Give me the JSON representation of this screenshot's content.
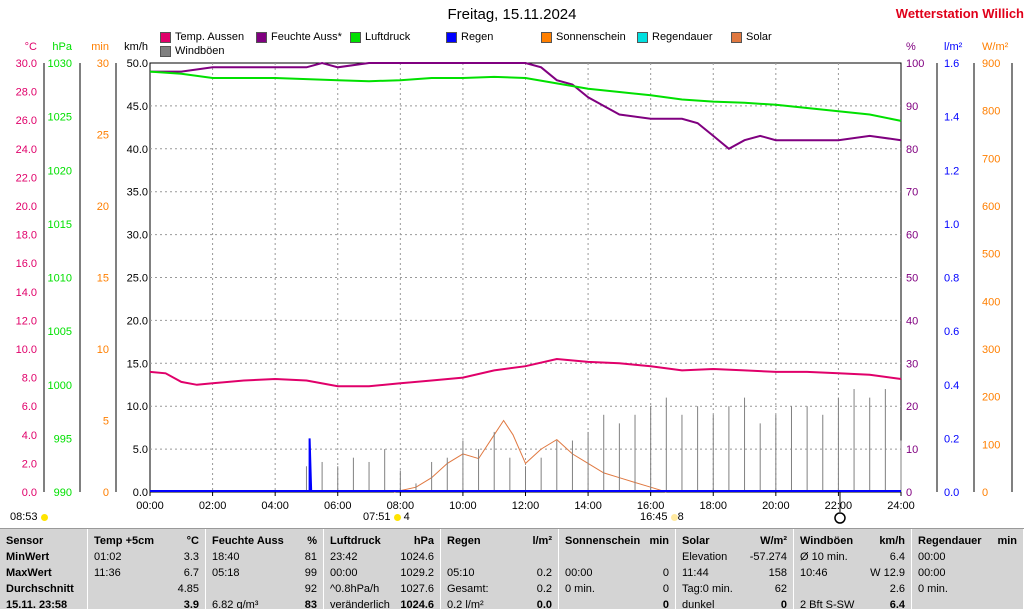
{
  "header": {
    "title": "Freitag, 15.11.2024",
    "brand": "Wetterstation Willich"
  },
  "legend": [
    {
      "label": "Temp. Aussen",
      "color": "#e0006a"
    },
    {
      "label": "Feuchte Auss*",
      "color": "#800080"
    },
    {
      "label": "Luftdruck",
      "color": "#00e000"
    },
    {
      "label": "Regen",
      "color": "#0000ff"
    },
    {
      "label": "Sonnenschein",
      "color": "#ff7f00"
    },
    {
      "label": "Regendauer",
      "color": "#00e0e0"
    },
    {
      "label": "Solar",
      "color": "#e07840"
    },
    {
      "label": "Windböen",
      "color": "#808080"
    }
  ],
  "axes_units": {
    "temp": "°C",
    "press": "hPa",
    "min": "min",
    "wind": "km/h",
    "pct": "%",
    "rain": "l/m²",
    "solar": "W/m²"
  },
  "markers": {
    "sunrise": "07:51",
    "sunrise_val": "4",
    "sunset": "16:45",
    "sunset_val": "8",
    "left_time": "08:53"
  },
  "chart_data": {
    "type": "line",
    "x_label": "time",
    "x_ticks": [
      "00:00",
      "02:00",
      "04:00",
      "06:00",
      "08:00",
      "10:00",
      "12:00",
      "14:00",
      "16:00",
      "18:00",
      "20:00",
      "22:00",
      "24:00"
    ],
    "axes": {
      "temp": {
        "range": [
          0,
          30
        ],
        "ticks": [
          "0.0",
          "2.0",
          "4.0",
          "6.0",
          "8.0",
          "10.0",
          "12.0",
          "14.0",
          "16.0",
          "18.0",
          "20.0",
          "22.0",
          "24.0",
          "26.0",
          "28.0",
          "30.0"
        ],
        "color": "#e0006a"
      },
      "pressure": {
        "range": [
          990,
          1030
        ],
        "ticks": [
          "990",
          "995",
          "1000",
          "1005",
          "1010",
          "1015",
          "1020",
          "1025",
          "1030"
        ],
        "color": "#00e000"
      },
      "minutes": {
        "range": [
          0,
          30
        ],
        "ticks": [
          "0",
          "5",
          "10",
          "15",
          "20",
          "25",
          "30"
        ],
        "color": "#ff7f00"
      },
      "wind": {
        "range": [
          0,
          50
        ],
        "ticks": [
          "0.0",
          "5.0",
          "10.0",
          "15.0",
          "20.0",
          "25.0",
          "30.0",
          "35.0",
          "40.0",
          "45.0",
          "50.0"
        ],
        "color": "#000000"
      },
      "humidity": {
        "range": [
          0,
          100
        ],
        "ticks": [
          "0",
          "10",
          "20",
          "30",
          "40",
          "50",
          "60",
          "70",
          "80",
          "90",
          "100"
        ],
        "color": "#800080"
      },
      "rain": {
        "range": [
          0,
          1.6
        ],
        "ticks": [
          "0.0",
          "0.2",
          "0.4",
          "0.6",
          "0.8",
          "1.0",
          "1.2",
          "1.4",
          "1.6"
        ],
        "color": "#0000ff"
      },
      "solar": {
        "range": [
          0,
          900
        ],
        "ticks": [
          "0",
          "100",
          "200",
          "300",
          "400",
          "500",
          "600",
          "700",
          "800",
          "900"
        ],
        "color": "#ff7f00"
      }
    },
    "series": [
      {
        "name": "Temp. Aussen",
        "axis": "temp",
        "color": "#e0006a",
        "x": [
          0,
          0.5,
          1,
          1.5,
          2,
          3,
          4,
          5,
          6,
          7,
          8,
          9,
          10,
          11,
          12,
          13,
          14,
          15,
          16,
          17,
          18,
          19,
          20,
          21,
          22,
          23,
          24
        ],
        "y": [
          8.4,
          8.3,
          7.7,
          7.5,
          7.6,
          7.8,
          7.9,
          7.8,
          7.4,
          7.4,
          7.6,
          7.8,
          8.0,
          8.5,
          8.8,
          9.3,
          9.1,
          9.0,
          8.8,
          8.5,
          8.6,
          8.5,
          8.4,
          8.4,
          8.3,
          8.2,
          7.9
        ]
      },
      {
        "name": "Feuchte Auss*",
        "axis": "humidity",
        "color": "#800080",
        "x": [
          0,
          1,
          2,
          3,
          4,
          5,
          5.5,
          6,
          7,
          8,
          9,
          10,
          11,
          12,
          12.5,
          13,
          13.5,
          14,
          14.5,
          15,
          16,
          17,
          17.5,
          18,
          18.5,
          19,
          19.5,
          20,
          20.5,
          21,
          22,
          23,
          24
        ],
        "y": [
          98,
          98,
          99,
          99,
          99,
          99,
          100,
          99,
          100,
          100,
          100,
          100,
          100,
          100,
          99,
          96,
          95,
          92,
          90,
          88,
          87,
          87,
          86,
          83,
          80,
          82,
          83,
          82,
          82,
          82,
          82,
          83,
          82
        ]
      },
      {
        "name": "Luftdruck",
        "axis": "pressure",
        "color": "#00e000",
        "x": [
          0,
          1,
          2,
          3,
          4,
          5,
          6,
          7,
          8,
          9,
          10,
          11,
          12,
          13,
          14,
          15,
          16,
          17,
          18,
          19,
          20,
          21,
          22,
          23,
          24
        ],
        "y": [
          1029.2,
          1029.0,
          1028.6,
          1028.6,
          1028.6,
          1028.5,
          1028.4,
          1028.3,
          1028.4,
          1028.6,
          1028.6,
          1028.7,
          1028.6,
          1028.1,
          1027.6,
          1027.3,
          1027.0,
          1026.6,
          1026.4,
          1026.3,
          1026.1,
          1025.8,
          1025.5,
          1025.2,
          1024.6
        ]
      },
      {
        "name": "Solar",
        "axis": "solar",
        "color": "#e07840",
        "x": [
          7.8,
          8.5,
          9,
          9.5,
          10,
          10.5,
          11,
          11.3,
          11.6,
          12,
          12.5,
          13,
          13.5,
          14,
          14.5,
          15,
          15.5,
          16,
          16.5
        ],
        "y": [
          0,
          10,
          30,
          60,
          80,
          70,
          120,
          150,
          120,
          60,
          90,
          110,
          80,
          60,
          40,
          30,
          20,
          10,
          0
        ]
      },
      {
        "name": "Regen",
        "axis": "rain",
        "color": "#0000ff",
        "x": [
          5.1,
          5.1,
          5.15
        ],
        "y": [
          0,
          0.2,
          0
        ]
      },
      {
        "name": "Windböen",
        "axis": "wind",
        "color": "#808080",
        "x": [
          5,
          5.5,
          6,
          6.5,
          7,
          7.5,
          8,
          8.5,
          9,
          9.5,
          10,
          10.5,
          11,
          11.5,
          12,
          12.5,
          13,
          13.5,
          14,
          14.5,
          15,
          15.5,
          16,
          16.5,
          17,
          17.5,
          18,
          18.5,
          19,
          19.5,
          20,
          20.5,
          21,
          21.5,
          22,
          22.5,
          23,
          23.5,
          24
        ],
        "y": [
          3,
          3.5,
          3,
          4,
          3.5,
          5,
          2.5,
          1,
          3.5,
          4,
          6,
          5,
          7,
          4,
          3,
          4,
          6,
          6,
          7,
          9,
          8,
          9,
          10,
          11,
          9,
          10,
          9,
          10,
          11,
          8,
          9,
          10,
          10,
          9,
          11,
          12,
          11,
          12,
          6
        ]
      }
    ]
  },
  "table": {
    "columns": [
      {
        "header": "Sensor",
        "rows": [
          "MinWert",
          "MaxWert",
          "Durchschnitt",
          "15.11. 23:58"
        ]
      },
      {
        "header": "Temp +5cm",
        "unit": "°C",
        "rows": [
          [
            "01:02",
            "3.3"
          ],
          [
            "11:36",
            "6.7"
          ],
          [
            "",
            "4.85"
          ],
          [
            "",
            "3.9"
          ]
        ]
      },
      {
        "header": "Feuchte Auss",
        "unit": "%",
        "rows": [
          [
            "18:40",
            "81"
          ],
          [
            "05:18",
            "99"
          ],
          [
            "",
            "92"
          ],
          [
            "6.82 g/m³",
            "83"
          ]
        ]
      },
      {
        "header": "Luftdruck",
        "unit": "hPa",
        "rows": [
          [
            "23:42",
            "1024.6"
          ],
          [
            "00:00",
            "1029.2"
          ],
          [
            "^0.8hPa/h",
            "1027.6"
          ],
          [
            "veränderlich",
            "1024.6"
          ]
        ]
      },
      {
        "header": "Regen",
        "unit": "l/m²",
        "rows": [
          [
            "",
            ""
          ],
          [
            "05:10",
            "0.2"
          ],
          [
            "Gesamt:",
            "0.2"
          ],
          [
            "0.2 l/m²",
            "0.0"
          ]
        ]
      },
      {
        "header": "Sonnenschein",
        "unit": "min",
        "rows": [
          [
            "",
            ""
          ],
          [
            "00:00",
            "0"
          ],
          [
            "0 min.",
            "0"
          ],
          [
            "",
            "0"
          ]
        ]
      },
      {
        "header": "Solar",
        "unit": "W/m²",
        "rows": [
          [
            "Elevation",
            "-57.274"
          ],
          [
            "11:44",
            "158"
          ],
          [
            "Tag:0 min.",
            "62"
          ],
          [
            "dunkel",
            "0"
          ]
        ]
      },
      {
        "header": "Windböen",
        "unit": "km/h",
        "rows": [
          [
            "Ø 10 min.",
            "6.4"
          ],
          [
            "10:46",
            "W 12.9"
          ],
          [
            "",
            "2.6"
          ],
          [
            "2 Bft S-SW",
            "6.4"
          ]
        ]
      },
      {
        "header": "Regendauer",
        "unit": "min",
        "rows": [
          [
            "00:00",
            ""
          ],
          [
            "00:00",
            ""
          ],
          [
            "0 min.",
            ""
          ],
          [
            "",
            ""
          ]
        ]
      }
    ]
  }
}
